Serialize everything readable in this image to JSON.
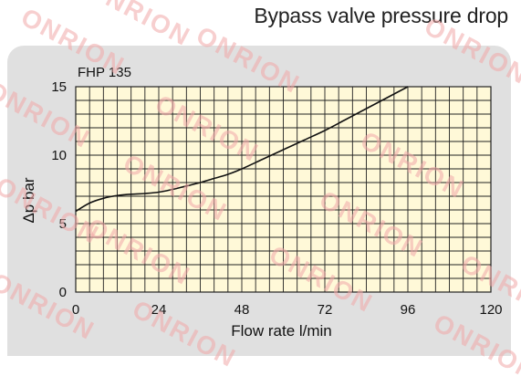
{
  "page_title": "Bypass valve pressure drop",
  "watermark": "ONRION",
  "chart_data": {
    "type": "line",
    "annotation": "FHP 135",
    "xlabel": "Flow rate l/min",
    "ylabel": "Δp bar",
    "xlim": [
      0,
      120
    ],
    "ylim": [
      0,
      15
    ],
    "xticks": [
      0,
      24,
      48,
      72,
      96,
      120
    ],
    "yticks": [
      0,
      5,
      10,
      15
    ],
    "grid": true,
    "grid_x_step": 4,
    "grid_y_step": 1,
    "background_color": "#fff9d8",
    "grid_color": "#222222",
    "line_color": "#111111",
    "series": [
      {
        "x": [
          0,
          4,
          8,
          12,
          16,
          20,
          24,
          28,
          32,
          36,
          40,
          44,
          48,
          54,
          60,
          66,
          72,
          78,
          84,
          90,
          96
        ],
        "y": [
          5.9,
          6.5,
          6.85,
          7.05,
          7.15,
          7.2,
          7.3,
          7.5,
          7.75,
          8.0,
          8.3,
          8.6,
          9.0,
          9.7,
          10.4,
          11.1,
          11.8,
          12.6,
          13.4,
          14.2,
          15.0
        ]
      }
    ]
  }
}
